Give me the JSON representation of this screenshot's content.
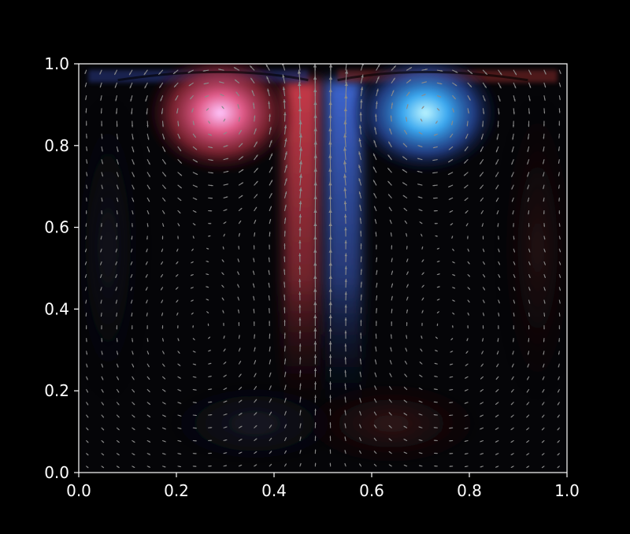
{
  "chart_data": {
    "type": "heatmap",
    "title": "",
    "xlabel": "",
    "ylabel": "",
    "xlim": [
      0.0,
      1.0
    ],
    "ylim": [
      0.0,
      1.0
    ],
    "x_ticks": [
      "0.0",
      "0.2",
      "0.4",
      "0.6",
      "0.8",
      "1.0"
    ],
    "y_ticks": [
      "0.0",
      "0.2",
      "0.4",
      "0.6",
      "0.8",
      "1.0"
    ],
    "x_tick_values": [
      0.0,
      0.2,
      0.4,
      0.6,
      0.8,
      1.0
    ],
    "y_tick_values": [
      0.0,
      0.2,
      0.4,
      0.6,
      0.8,
      1.0
    ],
    "grid": false,
    "legend": "none",
    "overlay": "quiver",
    "colormap": "diverging blue-black-red on dark background",
    "features": [
      {
        "label": "vortex",
        "sign": "positive",
        "x": 0.29,
        "y": 0.88,
        "color": "#ffb0ff"
      },
      {
        "label": "vortex",
        "sign": "negative",
        "x": 0.71,
        "y": 0.88,
        "color": "#7fe6ff"
      },
      {
        "label": "jet",
        "sign": "positive",
        "x": 0.45,
        "y": 0.5,
        "color": "#a8303c"
      },
      {
        "label": "jet",
        "sign": "negative",
        "x": 0.55,
        "y": 0.5,
        "color": "#3a5bbf"
      }
    ],
    "colors": {
      "background": "#000000",
      "axes": "#ffffff",
      "arrows": "#8a8a8a",
      "positive": "#e0435a",
      "negative": "#3f8cff"
    }
  }
}
